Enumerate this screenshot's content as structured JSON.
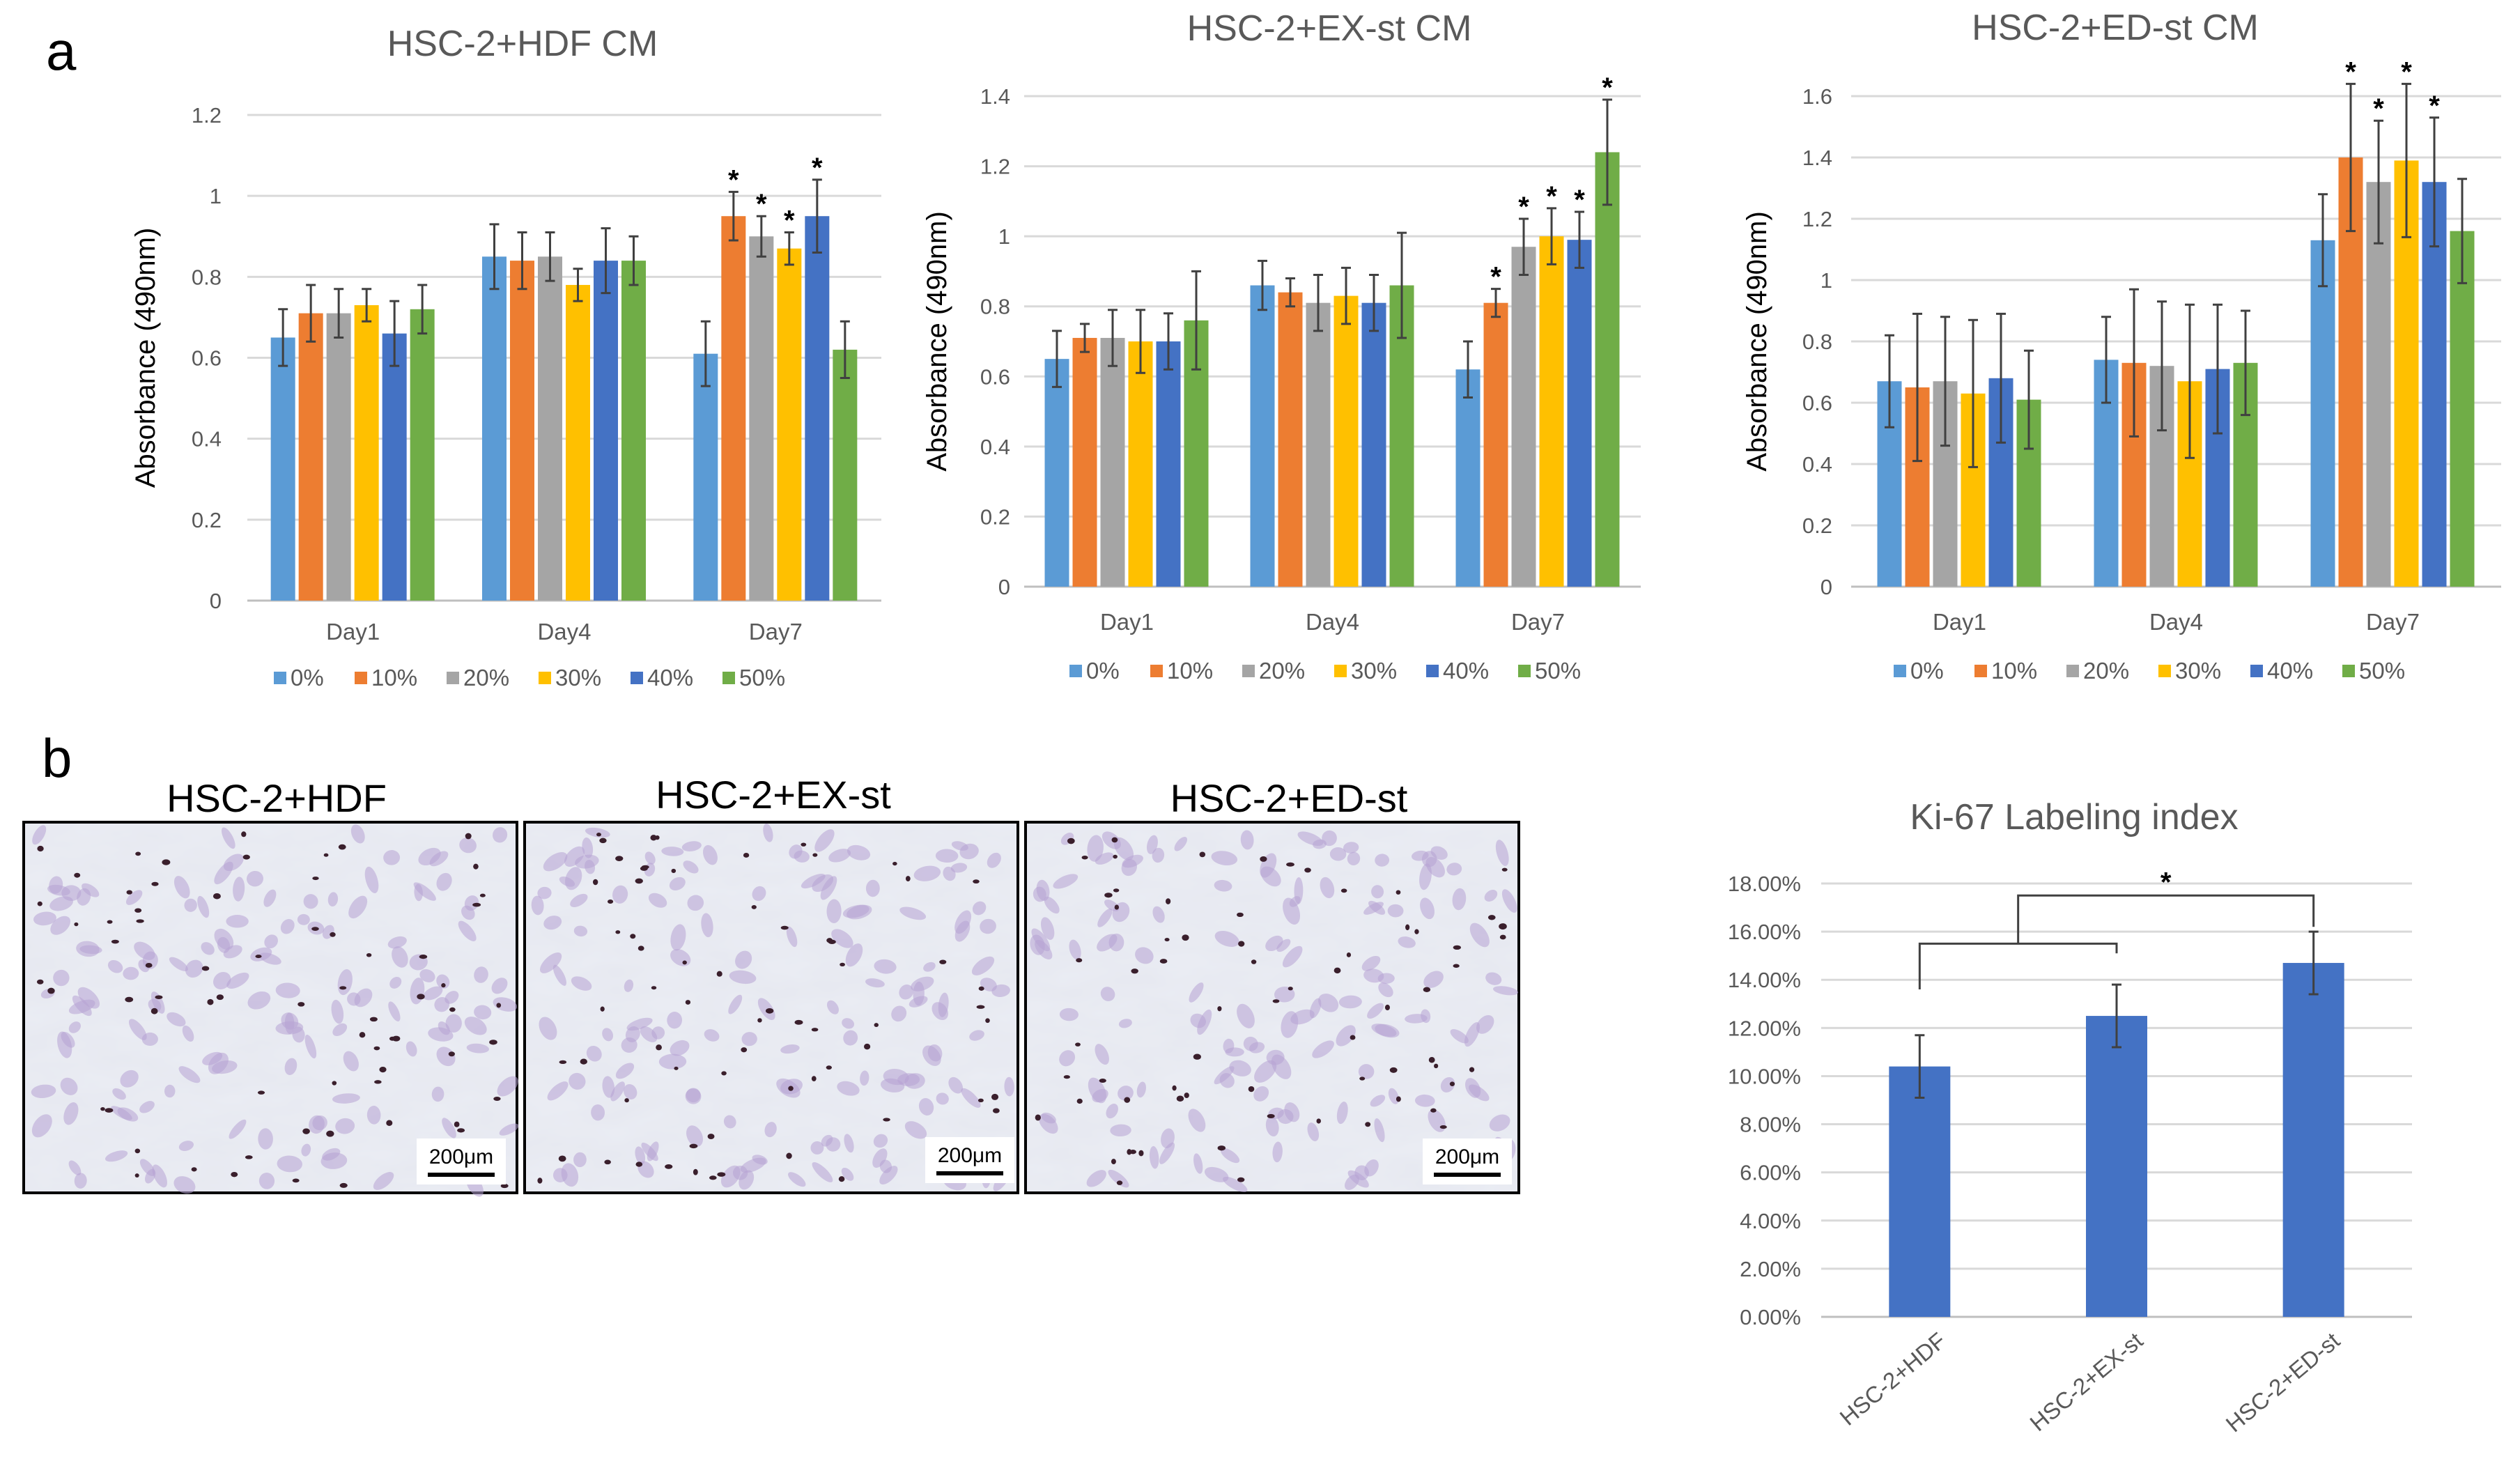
{
  "panel_labels": {
    "a": "a",
    "b": "b"
  },
  "colors": {
    "0%": "#5b9bd5",
    "10%": "#ed7d31",
    "20%": "#a5a5a5",
    "30%": "#ffc000",
    "40%": "#4472c4",
    "50%": "#70ad47"
  },
  "chart_data": [
    {
      "type": "bar",
      "title": "HSC-2+HDF CM",
      "xlabel": "",
      "ylabel": "Absorbance (490nm)",
      "ylim": [
        0,
        1.2
      ],
      "yticks": [
        "0",
        "0.2",
        "0.4",
        "0.6",
        "0.8",
        "1",
        "1.2"
      ],
      "categories": [
        "Day1",
        "Day4",
        "Day7"
      ],
      "legend": [
        "0%",
        "10%",
        "20%",
        "30%",
        "40%",
        "50%"
      ],
      "legend_placement": "bottom",
      "series": [
        {
          "name": "0%",
          "values": [
            0.65,
            0.85,
            0.61
          ],
          "errors": [
            0.07,
            0.08,
            0.08
          ],
          "stars": [
            false,
            false,
            false
          ]
        },
        {
          "name": "10%",
          "values": [
            0.71,
            0.84,
            0.95
          ],
          "errors": [
            0.07,
            0.07,
            0.06
          ],
          "stars": [
            false,
            false,
            true
          ]
        },
        {
          "name": "20%",
          "values": [
            0.71,
            0.85,
            0.9
          ],
          "errors": [
            0.06,
            0.06,
            0.05
          ],
          "stars": [
            false,
            false,
            true
          ]
        },
        {
          "name": "30%",
          "values": [
            0.73,
            0.78,
            0.87
          ],
          "errors": [
            0.04,
            0.04,
            0.04
          ],
          "stars": [
            false,
            false,
            true
          ]
        },
        {
          "name": "40%",
          "values": [
            0.66,
            0.84,
            0.95
          ],
          "errors": [
            0.08,
            0.08,
            0.09
          ],
          "stars": [
            false,
            false,
            true
          ]
        },
        {
          "name": "50%",
          "values": [
            0.72,
            0.84,
            0.62
          ],
          "errors": [
            0.06,
            0.06,
            0.07
          ],
          "stars": [
            false,
            false,
            false
          ]
        }
      ]
    },
    {
      "type": "bar",
      "title": "HSC-2+EX-st CM",
      "xlabel": "",
      "ylabel": "Absorbance (490nm)",
      "ylim": [
        0,
        1.4
      ],
      "yticks": [
        "0",
        "0.2",
        "0.4",
        "0.6",
        "0.8",
        "1",
        "1.2",
        "1.4"
      ],
      "categories": [
        "Day1",
        "Day4",
        "Day7"
      ],
      "legend": [
        "0%",
        "10%",
        "20%",
        "30%",
        "40%",
        "50%"
      ],
      "legend_placement": "bottom",
      "series": [
        {
          "name": "0%",
          "values": [
            0.65,
            0.86,
            0.62
          ],
          "errors": [
            0.08,
            0.07,
            0.08
          ],
          "stars": [
            false,
            false,
            false
          ]
        },
        {
          "name": "10%",
          "values": [
            0.71,
            0.84,
            0.81
          ],
          "errors": [
            0.04,
            0.04,
            0.04
          ],
          "stars": [
            false,
            false,
            true
          ]
        },
        {
          "name": "20%",
          "values": [
            0.71,
            0.81,
            0.97
          ],
          "errors": [
            0.08,
            0.08,
            0.08
          ],
          "stars": [
            false,
            false,
            true
          ]
        },
        {
          "name": "30%",
          "values": [
            0.7,
            0.83,
            1.0
          ],
          "errors": [
            0.09,
            0.08,
            0.08
          ],
          "stars": [
            false,
            false,
            true
          ]
        },
        {
          "name": "40%",
          "values": [
            0.7,
            0.81,
            0.99
          ],
          "errors": [
            0.08,
            0.08,
            0.08
          ],
          "stars": [
            false,
            false,
            true
          ]
        },
        {
          "name": "50%",
          "values": [
            0.76,
            0.86,
            1.24
          ],
          "errors": [
            0.14,
            0.15,
            0.15
          ],
          "stars": [
            false,
            false,
            true
          ]
        }
      ]
    },
    {
      "type": "bar",
      "title": "HSC-2+ED-st CM",
      "xlabel": "",
      "ylabel": "Absorbance (490nm)",
      "ylim": [
        0,
        1.6
      ],
      "yticks": [
        "0",
        "0.2",
        "0.4",
        "0.6",
        "0.8",
        "1",
        "1.2",
        "1.4",
        "1.6"
      ],
      "categories": [
        "Day1",
        "Day4",
        "Day7"
      ],
      "legend": [
        "0%",
        "10%",
        "20%",
        "30%",
        "40%",
        "50%"
      ],
      "legend_placement": "bottom",
      "series": [
        {
          "name": "0%",
          "values": [
            0.67,
            0.74,
            1.13
          ],
          "errors": [
            0.15,
            0.14,
            0.15
          ],
          "stars": [
            false,
            false,
            false
          ]
        },
        {
          "name": "10%",
          "values": [
            0.65,
            0.73,
            1.4
          ],
          "errors": [
            0.24,
            0.24,
            0.24
          ],
          "stars": [
            false,
            false,
            true
          ]
        },
        {
          "name": "20%",
          "values": [
            0.67,
            0.72,
            1.32
          ],
          "errors": [
            0.21,
            0.21,
            0.2
          ],
          "stars": [
            false,
            false,
            true
          ]
        },
        {
          "name": "30%",
          "values": [
            0.63,
            0.67,
            1.39
          ],
          "errors": [
            0.24,
            0.25,
            0.25
          ],
          "stars": [
            false,
            false,
            true
          ]
        },
        {
          "name": "40%",
          "values": [
            0.68,
            0.71,
            1.32
          ],
          "errors": [
            0.21,
            0.21,
            0.21
          ],
          "stars": [
            false,
            false,
            true
          ]
        },
        {
          "name": "50%",
          "values": [
            0.61,
            0.73,
            1.16
          ],
          "errors": [
            0.16,
            0.17,
            0.17
          ],
          "stars": [
            false,
            false,
            false
          ]
        }
      ]
    },
    {
      "type": "bar",
      "title": "Ki-67 Labeling index",
      "xlabel": "",
      "ylabel": "",
      "ylim": [
        0,
        18
      ],
      "yticks": [
        "0.00%",
        "2.00%",
        "4.00%",
        "6.00%",
        "8.00%",
        "10.00%",
        "12.00%",
        "14.00%",
        "16.00%",
        "18.00%"
      ],
      "categories": [
        "HSC-2+HDF",
        "HSC-2+EX-st",
        "HSC-2+ED-st"
      ],
      "values": [
        10.4,
        12.5,
        14.7
      ],
      "errors": [
        1.3,
        1.3,
        1.3
      ],
      "color": "#4472c4",
      "significance": {
        "label": "*",
        "left_group": [
          "HSC-2+HDF",
          "HSC-2+EX-st"
        ],
        "right_group": [
          "HSC-2+ED-st"
        ]
      }
    }
  ],
  "micrographs": [
    {
      "label": "HSC-2+HDF",
      "scale_bar": "200μm"
    },
    {
      "label": "HSC-2+EX-st",
      "scale_bar": "200μm"
    },
    {
      "label": "HSC-2+ED-st",
      "scale_bar": "200μm"
    }
  ]
}
